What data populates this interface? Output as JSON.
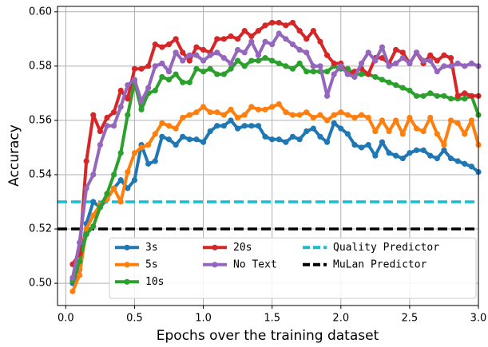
{
  "chart_data": {
    "type": "line",
    "xlabel": "Epochs over the training dataset",
    "ylabel": "Accuracy",
    "x": [
      0.05,
      0.1,
      0.15,
      0.2,
      0.25,
      0.3,
      0.35,
      0.4,
      0.45,
      0.5,
      0.55,
      0.6,
      0.65,
      0.7,
      0.75,
      0.8,
      0.85,
      0.9,
      0.95,
      1.0,
      1.05,
      1.1,
      1.15,
      1.2,
      1.25,
      1.3,
      1.35,
      1.4,
      1.45,
      1.5,
      1.55,
      1.6,
      1.65,
      1.7,
      1.75,
      1.8,
      1.85,
      1.9,
      1.95,
      2.0,
      2.05,
      2.1,
      2.15,
      2.2,
      2.25,
      2.3,
      2.35,
      2.4,
      2.45,
      2.5,
      2.55,
      2.6,
      2.65,
      2.7,
      2.75,
      2.8,
      2.85,
      2.9,
      2.95,
      3.0
    ],
    "series": [
      {
        "name": "3s",
        "color": "#1f77b4",
        "values": [
          0.5,
          0.505,
          0.522,
          0.53,
          0.528,
          0.531,
          0.535,
          0.538,
          0.535,
          0.538,
          0.551,
          0.544,
          0.545,
          0.554,
          0.553,
          0.551,
          0.554,
          0.553,
          0.553,
          0.552,
          0.556,
          0.558,
          0.558,
          0.56,
          0.557,
          0.558,
          0.558,
          0.558,
          0.554,
          0.553,
          0.553,
          0.552,
          0.554,
          0.553,
          0.556,
          0.557,
          0.554,
          0.552,
          0.559,
          0.557,
          0.555,
          0.551,
          0.55,
          0.551,
          0.547,
          0.552,
          0.548,
          0.547,
          0.546,
          0.548,
          0.549,
          0.549,
          0.547,
          0.546,
          0.549,
          0.546,
          0.545,
          0.544,
          0.543,
          0.541
        ]
      },
      {
        "name": "5s",
        "color": "#ff7f0e",
        "values": [
          0.497,
          0.503,
          0.52,
          0.525,
          0.529,
          0.531,
          0.535,
          0.53,
          0.541,
          0.548,
          0.55,
          0.551,
          0.555,
          0.559,
          0.558,
          0.557,
          0.561,
          0.562,
          0.563,
          0.565,
          0.563,
          0.563,
          0.562,
          0.564,
          0.561,
          0.562,
          0.565,
          0.564,
          0.564,
          0.565,
          0.566,
          0.563,
          0.562,
          0.562,
          0.563,
          0.561,
          0.562,
          0.56,
          0.562,
          0.563,
          0.562,
          0.561,
          0.562,
          0.561,
          0.556,
          0.56,
          0.556,
          0.56,
          0.555,
          0.561,
          0.557,
          0.556,
          0.561,
          0.555,
          0.551,
          0.56,
          0.559,
          0.555,
          0.56,
          0.551
        ]
      },
      {
        "name": "10s",
        "color": "#2ca02c",
        "values": [
          0.501,
          0.508,
          0.518,
          0.521,
          0.528,
          0.533,
          0.54,
          0.548,
          0.562,
          0.574,
          0.564,
          0.57,
          0.571,
          0.576,
          0.575,
          0.577,
          0.574,
          0.574,
          0.579,
          0.578,
          0.579,
          0.577,
          0.577,
          0.579,
          0.582,
          0.58,
          0.582,
          0.582,
          0.583,
          0.582,
          0.581,
          0.58,
          0.579,
          0.581,
          0.578,
          0.578,
          0.578,
          0.578,
          0.58,
          0.579,
          0.579,
          0.577,
          0.577,
          0.577,
          0.576,
          0.575,
          0.574,
          0.573,
          0.572,
          0.571,
          0.569,
          0.569,
          0.57,
          0.569,
          0.569,
          0.568,
          0.568,
          0.568,
          0.569,
          0.562
        ]
      },
      {
        "name": "20s",
        "color": "#d62728",
        "values": [
          0.507,
          0.511,
          0.545,
          0.562,
          0.556,
          0.561,
          0.563,
          0.571,
          0.568,
          0.579,
          0.579,
          0.58,
          0.588,
          0.587,
          0.588,
          0.59,
          0.585,
          0.582,
          0.587,
          0.586,
          0.585,
          0.59,
          0.59,
          0.591,
          0.59,
          0.593,
          0.591,
          0.593,
          0.595,
          0.596,
          0.596,
          0.595,
          0.596,
          0.593,
          0.59,
          0.593,
          0.589,
          0.584,
          0.581,
          0.581,
          0.577,
          0.578,
          0.579,
          0.577,
          0.583,
          0.583,
          0.581,
          0.586,
          0.585,
          0.581,
          0.585,
          0.581,
          0.584,
          0.582,
          0.584,
          0.583,
          0.569,
          0.57,
          0.569,
          0.569
        ]
      },
      {
        "name": "No Text",
        "color": "#9467bd",
        "values": [
          0.502,
          0.515,
          0.535,
          0.54,
          0.551,
          0.558,
          0.558,
          0.565,
          0.573,
          0.575,
          0.567,
          0.572,
          0.58,
          0.581,
          0.578,
          0.585,
          0.582,
          0.584,
          0.584,
          0.582,
          0.584,
          0.585,
          0.583,
          0.581,
          0.586,
          0.585,
          0.589,
          0.584,
          0.589,
          0.588,
          0.592,
          0.59,
          0.588,
          0.586,
          0.585,
          0.58,
          0.58,
          0.569,
          0.577,
          0.58,
          0.577,
          0.576,
          0.581,
          0.585,
          0.582,
          0.587,
          0.58,
          0.581,
          0.583,
          0.581,
          0.585,
          0.582,
          0.582,
          0.578,
          0.58,
          0.58,
          0.581,
          0.58,
          0.581,
          0.58
        ]
      }
    ],
    "hlines": [
      {
        "name": "Quality Predictor",
        "color": "#17becf",
        "value": 0.53,
        "style": "dashed"
      },
      {
        "name": "MuLan Predictor",
        "color": "#000000",
        "value": 0.52,
        "style": "dashed"
      }
    ],
    "xlim": [
      -0.06,
      3.0
    ],
    "ylim": [
      0.4918,
      0.602
    ],
    "xticks": [
      {
        "value": 0,
        "label": "0.0"
      },
      0.5,
      {
        "value": 1,
        "label": "1.0"
      },
      1.5,
      {
        "value": 2,
        "label": "2.0"
      },
      2.5,
      {
        "value": 3,
        "label": "3.0"
      }
    ],
    "yticks": [
      {
        "value": 0.5,
        "label": "0.50"
      },
      0.52,
      0.54,
      0.56,
      0.58,
      {
        "value": 0.6,
        "label": "0.60"
      }
    ],
    "grid": true,
    "legend": "lower right"
  }
}
